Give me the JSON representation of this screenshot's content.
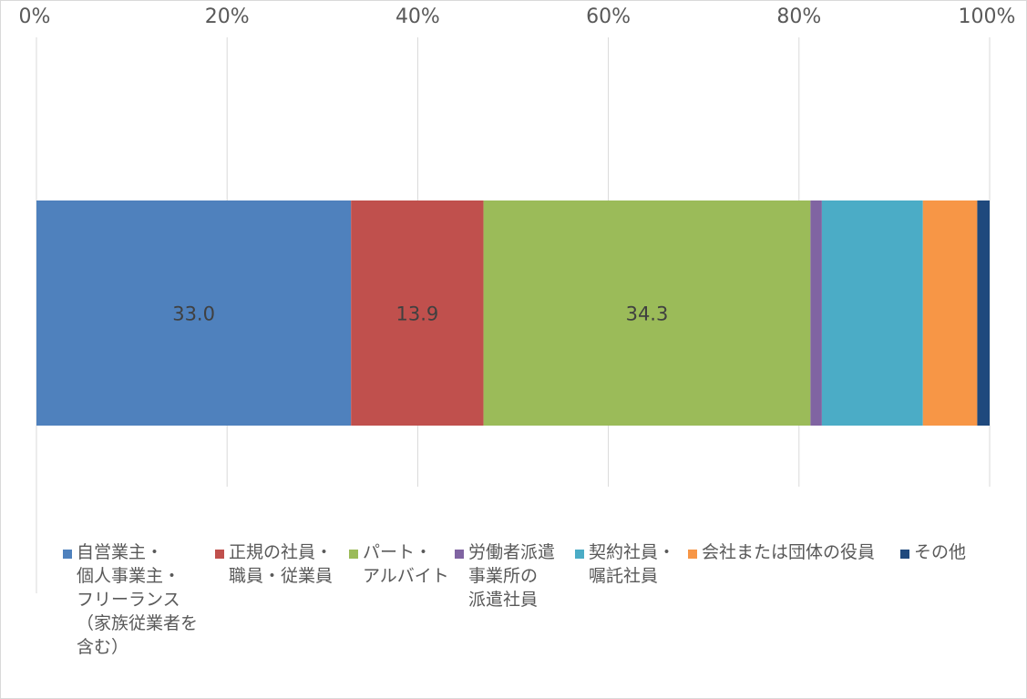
{
  "chart_data": {
    "type": "bar",
    "orientation": "horizontal",
    "stacked": "100%",
    "x_ticks": [
      "0%",
      "20%",
      "40%",
      "60%",
      "80%",
      "100%"
    ],
    "xlim": [
      0,
      100
    ],
    "grid": true,
    "legend_position": "bottom",
    "series": [
      {
        "name": "自営業主・\n個人事業主・\nフリーランス\n（家族従業者を\n含む）",
        "value": 33.0,
        "label": "33.0",
        "color": "#4f81bd"
      },
      {
        "name": "正規の社員・\n職員・従業員",
        "value": 13.9,
        "label": "13.9",
        "color": "#c0504d"
      },
      {
        "name": "パート・\nアルバイト",
        "value": 34.3,
        "label": "34.3",
        "color": "#9bbb59"
      },
      {
        "name": "労働者派遣\n事業所の\n派遣社員",
        "value": 1.2,
        "label": "",
        "color": "#8064a2"
      },
      {
        "name": "契約社員・\n嘱託社員",
        "value": 10.6,
        "label": "",
        "color": "#4bacc6"
      },
      {
        "name": "会社または団体の役員",
        "value": 5.7,
        "label": "",
        "color": "#f79646"
      },
      {
        "name": "その他",
        "value": 1.3,
        "label": "",
        "color": "#1f497d"
      }
    ]
  }
}
